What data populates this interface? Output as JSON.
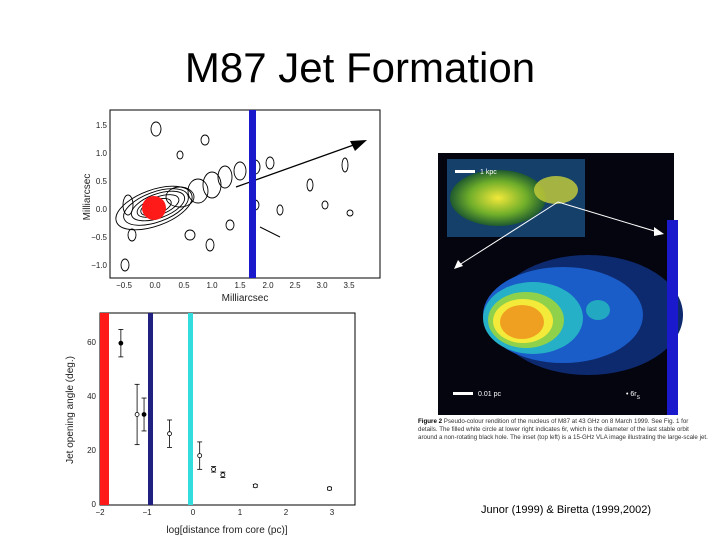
{
  "slide": {
    "title": "M87 Jet Formation",
    "credit": "Junor (1999) & Biretta (1999,2002)"
  },
  "top_plot": {
    "xlabel": "Milliarcsec",
    "ylabel": "Milliarcsec",
    "xticks": [
      "−0.5",
      "0.0",
      "0.5",
      "1.0",
      "1.5",
      "2.0",
      "2.5",
      "3.0",
      "3.5"
    ],
    "yticks": [
      "1.5",
      "1.0",
      "0.5",
      "0.0",
      "−0.5",
      "−1.0"
    ]
  },
  "bottom_plot": {
    "xlabel": "log[distance from core (pc)]",
    "ylabel": "Jet opening angle (deg.)",
    "xticks": [
      "−2",
      "−1",
      "0",
      "1",
      "2",
      "3"
    ],
    "yticks": [
      "60",
      "40",
      "20",
      "0"
    ]
  },
  "chart_data": {
    "type": "scatter",
    "title": "",
    "xlabel": "log[distance from core (pc)]",
    "ylabel": "Jet opening angle (deg.)",
    "xlim": [
      -2,
      3.5
    ],
    "ylim": [
      0,
      70
    ],
    "series": [
      {
        "values": [
          {
            "x": -1.55,
            "y": 59,
            "err": 5
          },
          {
            "x": -1.2,
            "y": 33,
            "err": 11
          },
          {
            "x": -1.05,
            "y": 33,
            "err": 6
          },
          {
            "x": -0.5,
            "y": 26,
            "err": 5
          },
          {
            "x": 0.15,
            "y": 18,
            "err": 5
          },
          {
            "x": 0.45,
            "y": 13,
            "err": 1
          },
          {
            "x": 0.65,
            "y": 11,
            "err": 1
          },
          {
            "x": 1.35,
            "y": 7,
            "err": 0.5
          },
          {
            "x": 2.95,
            "y": 6,
            "err": 0.5
          }
        ]
      }
    ],
    "grid": false,
    "legend": "none"
  },
  "image": {
    "label_top": "1 kpc",
    "label_bottom": "0.01 pc",
    "label_rs": "• 6r",
    "label_rs_sub": "S"
  },
  "caption": {
    "bold": "Figure 2",
    "text": " Pseudo-colour rendition of the nucleus of M87 at 43 GHz on 8 March 1999. See Fig. 1 for details. The filled white circle at lower right indicates 6r, which is the diameter of the last stable orbit around a non-rotating black hole. The inset (top left) is a 15-GHz VLA image illustrating the large-scale jet."
  },
  "colors": {
    "red_bar": "#ff1a1a",
    "blue_bar": "#1a1acc",
    "cyan_bar": "#33dddd",
    "navy_bar": "#202080"
  }
}
